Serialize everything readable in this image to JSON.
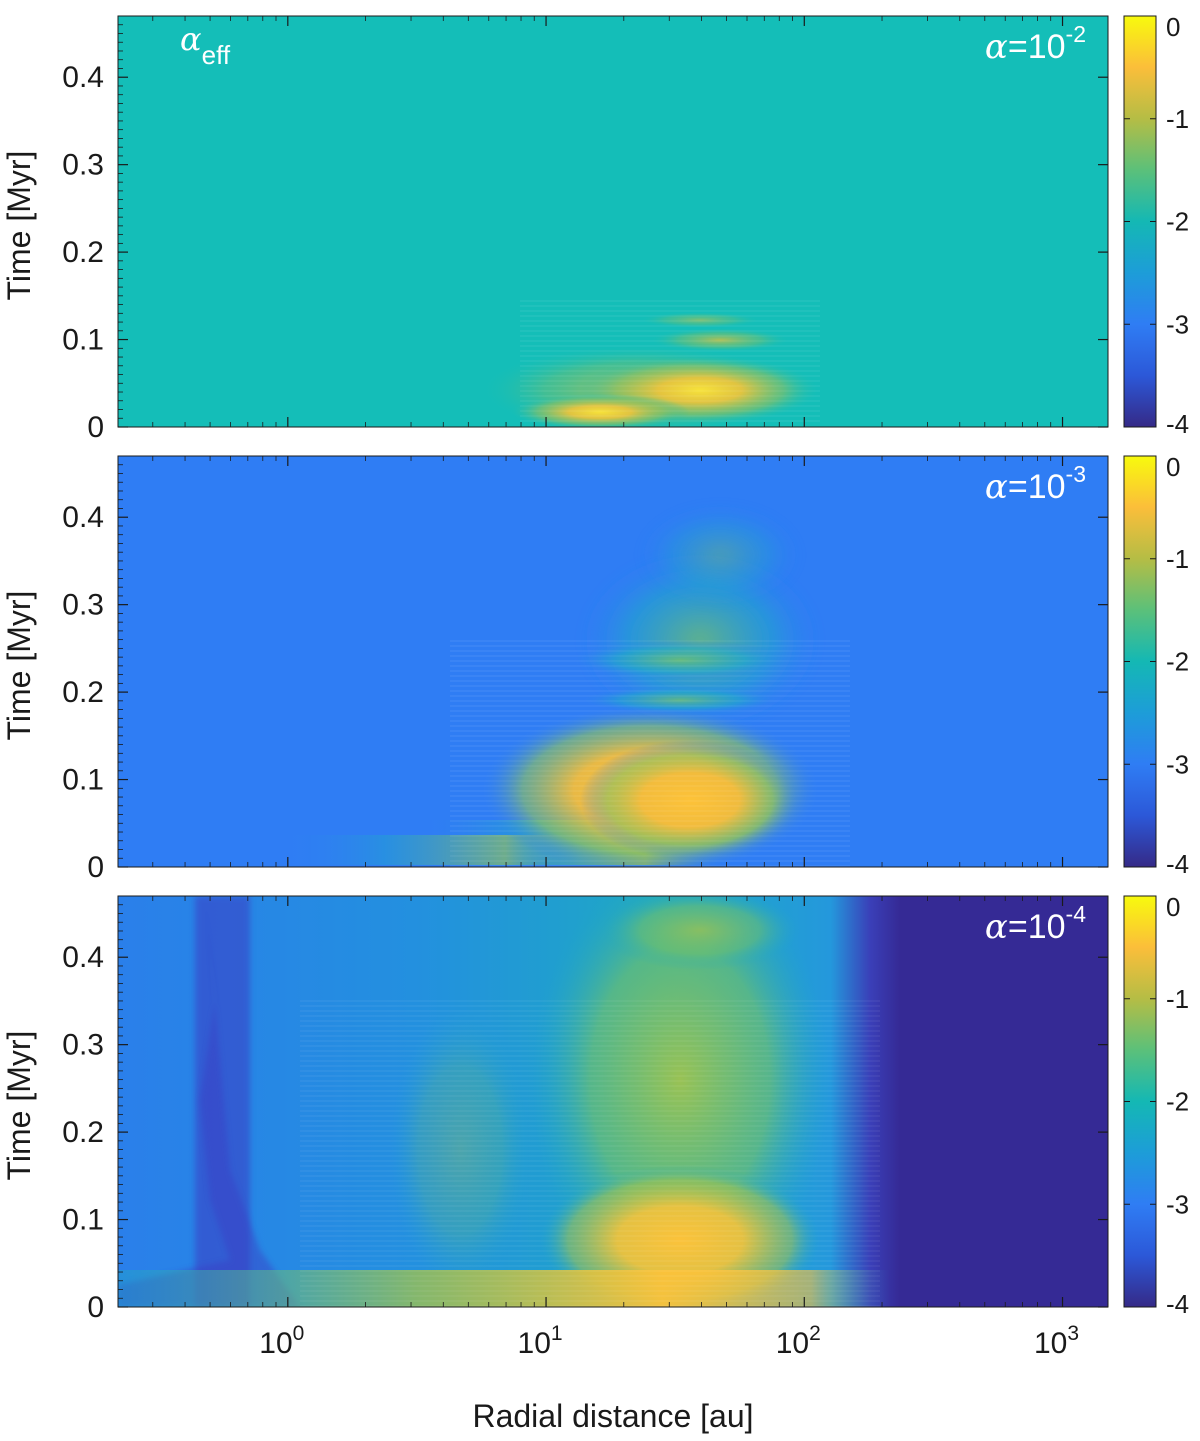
{
  "figure": {
    "xlabel": "Radial distance [au]",
    "ylabel": "Time [Myr]"
  },
  "chart_data": [
    {
      "type": "heatmap",
      "annotation": "α=10^-2",
      "alpha_label": {
        "symbol": "α",
        "exponent": "-2"
      },
      "corner_label": {
        "symbol": "α",
        "subscript": "eff"
      },
      "xlabel": "",
      "ylabel": "Time [Myr]",
      "x_scale": "log",
      "xlim": [
        0.22,
        1500
      ],
      "ylim": [
        0,
        0.47
      ],
      "yticks": [
        "0",
        "0.1",
        "0.2",
        "0.3",
        "0.4"
      ],
      "colorbar": {
        "range": [
          -4,
          0
        ],
        "ticks": [
          "0",
          "-1",
          "-2",
          "-3",
          "-4"
        ]
      },
      "background_value": -2,
      "features": [
        {
          "r_min": 8,
          "r_max": 80,
          "t_min": 0,
          "t_max": 0.06,
          "value": -0.2
        },
        {
          "r_min": 30,
          "r_max": 70,
          "t_min": 0.06,
          "t_max": 0.12,
          "value": -1.0
        }
      ]
    },
    {
      "type": "heatmap",
      "annotation": "α=10^-3",
      "alpha_label": {
        "symbol": "α",
        "exponent": "-3"
      },
      "xlabel": "",
      "ylabel": "Time [Myr]",
      "x_scale": "log",
      "xlim": [
        0.22,
        1500
      ],
      "ylim": [
        0,
        0.47
      ],
      "yticks": [
        "0",
        "0.1",
        "0.2",
        "0.3",
        "0.4"
      ],
      "colorbar": {
        "range": [
          -4,
          0
        ],
        "ticks": [
          "0",
          "-1",
          "-2",
          "-3",
          "-4"
        ]
      },
      "background_value": -3,
      "features": [
        {
          "r_min": 5,
          "r_max": 100,
          "t_min": 0,
          "t_max": 0.1,
          "value": -0.7
        },
        {
          "r_min": 15,
          "r_max": 80,
          "t_min": 0.1,
          "t_max": 0.22,
          "value": -1.5
        },
        {
          "r_min": 40,
          "r_max": 90,
          "t_min": 0.3,
          "t_max": 0.4,
          "value": -2.5
        }
      ]
    },
    {
      "type": "heatmap",
      "annotation": "α=10^-4",
      "alpha_label": {
        "symbol": "α",
        "exponent": "-4"
      },
      "xlabel": "Radial distance [au]",
      "ylabel": "Time [Myr]",
      "x_scale": "log",
      "xlim": [
        0.22,
        1500
      ],
      "ylim": [
        0,
        0.47
      ],
      "xticks": [
        {
          "base": "10",
          "exp": "0"
        },
        {
          "base": "10",
          "exp": "1"
        },
        {
          "base": "10",
          "exp": "2"
        },
        {
          "base": "10",
          "exp": "3"
        }
      ],
      "yticks": [
        "0",
        "0.1",
        "0.2",
        "0.3",
        "0.4"
      ],
      "colorbar": {
        "range": [
          -4,
          0
        ],
        "ticks": [
          "0",
          "-1",
          "-2",
          "-3",
          "-4"
        ]
      },
      "background_value": -2.6,
      "features": [
        {
          "r_min": 10,
          "r_max": 100,
          "t_min": 0,
          "t_max": 0.12,
          "value": -0.7
        },
        {
          "r_min": 10,
          "r_max": 90,
          "t_min": 0.12,
          "t_max": 0.47,
          "value": -1.4
        },
        {
          "r_min": 0.45,
          "r_max": 0.9,
          "t_min": 0,
          "t_max": 0.47,
          "value": -3.3
        },
        {
          "r_min": 200,
          "r_max": 1500,
          "t_min": 0,
          "t_max": 0.47,
          "value": -4
        }
      ]
    }
  ]
}
